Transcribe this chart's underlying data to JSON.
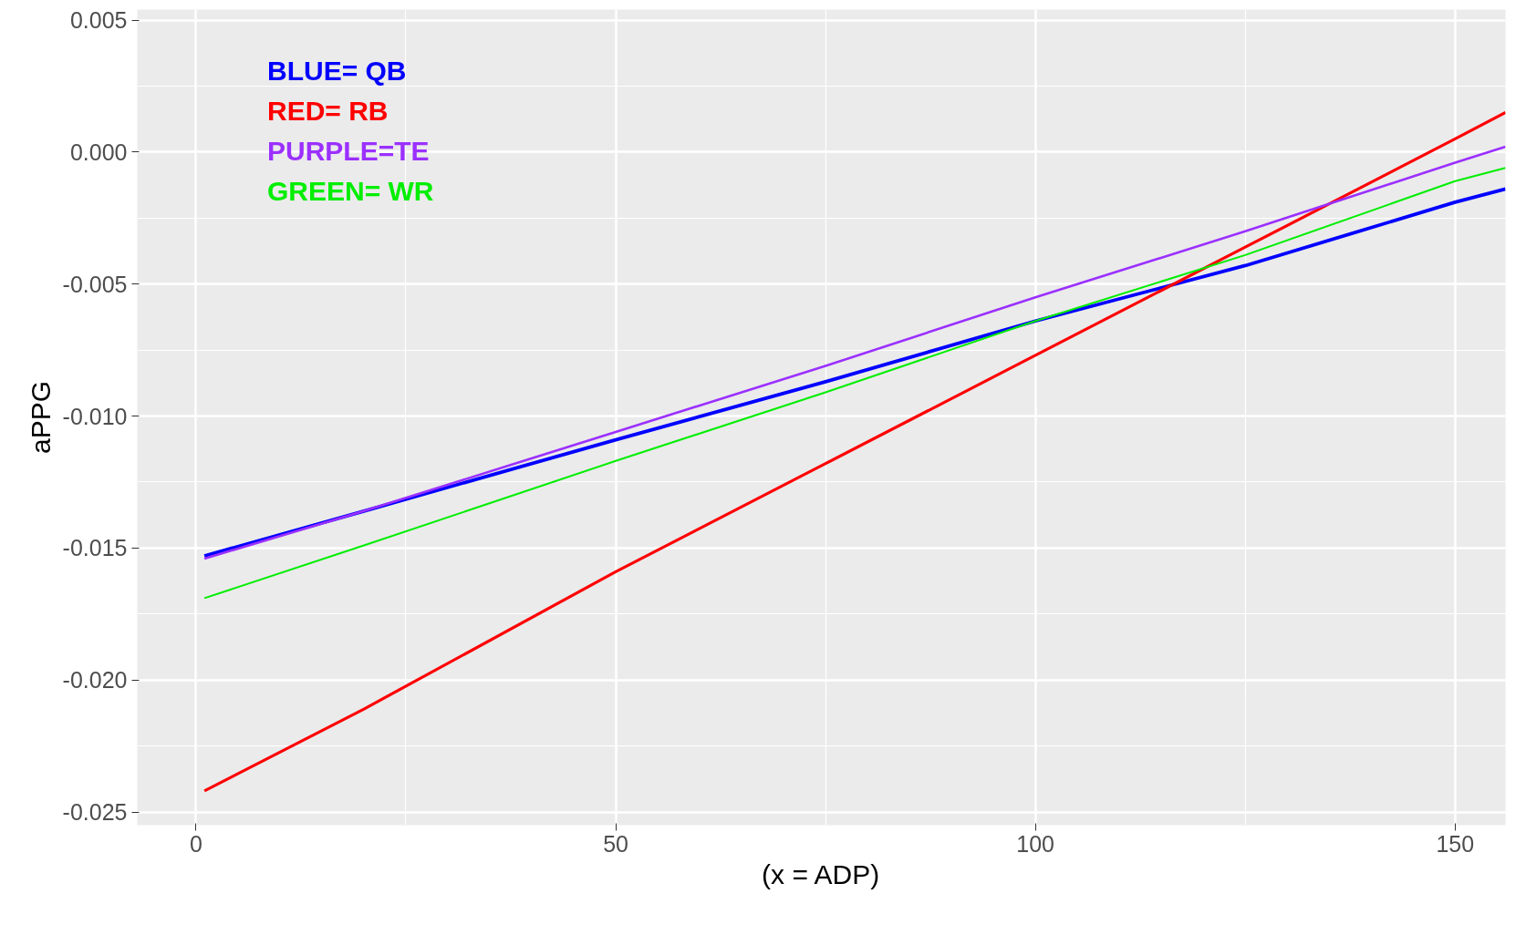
{
  "chart_data": {
    "type": "line",
    "xlabel": "(x = ADP)",
    "ylabel": "aPPG",
    "xlim": [
      -7,
      156
    ],
    "ylim": [
      -0.0255,
      0.0054
    ],
    "xticks": [
      0,
      50,
      100,
      150
    ],
    "yticks": [
      {
        "value": 0.005,
        "label": "0.005"
      },
      {
        "value": 0,
        "label": "0.000"
      },
      {
        "value": -0.005,
        "label": "-0.005"
      },
      {
        "value": -0.01,
        "label": "-0.010"
      },
      {
        "value": -0.015,
        "label": "-0.015"
      },
      {
        "value": -0.02,
        "label": "-0.020"
      },
      {
        "value": -0.025,
        "label": "-0.025"
      }
    ],
    "grid": true,
    "legend": "top left",
    "line_style": "solid",
    "x": [
      1,
      20,
      50,
      75,
      100,
      125,
      150,
      156
    ],
    "series": [
      {
        "name": "BLUE= QB",
        "color": "#0000ff",
        "values": [
          -0.0153,
          -0.0136,
          -0.0109,
          -0.0087,
          -0.0064,
          -0.0043,
          -0.0019,
          -0.0014
        ]
      },
      {
        "name": "RED= RB",
        "color": "#ff0000",
        "values": [
          -0.0242,
          -0.0211,
          -0.0159,
          -0.0118,
          -0.0077,
          -0.0036,
          0.0005,
          0.0015
        ]
      },
      {
        "name": "PURPLE=TE",
        "color": "#9b30ff",
        "values": [
          -0.0154,
          -0.0136,
          -0.0106,
          -0.0081,
          -0.0055,
          -0.003,
          -0.0004,
          0.0002
        ]
      },
      {
        "name": "GREEN= WR",
        "color": "#00ee00",
        "values": [
          -0.0169,
          -0.0149,
          -0.0117,
          -0.0091,
          -0.0064,
          -0.0039,
          -0.0011,
          -0.0006
        ]
      }
    ]
  }
}
